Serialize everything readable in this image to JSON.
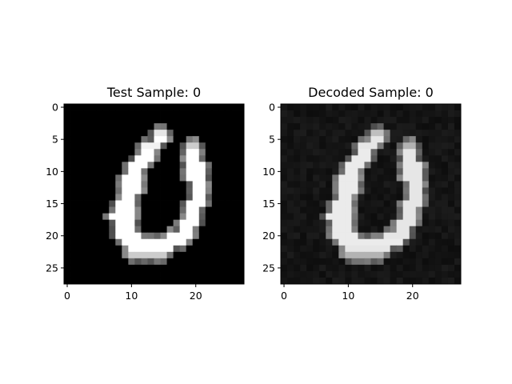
{
  "chart_data": [
    {
      "type": "heatmap",
      "title": "Test Sample: 0",
      "colormap": "gray",
      "rows": 28,
      "cols": 28,
      "xlim": [
        -0.5,
        27.5
      ],
      "ylim": [
        27.5,
        -0.5
      ],
      "xticks": [
        0,
        10,
        20
      ],
      "yticks": [
        0,
        5,
        10,
        15,
        20,
        25
      ],
      "background": 0.0,
      "stroke": [
        {
          "row": 4,
          "from": 14,
          "to": 15,
          "v": 0.9
        },
        {
          "row": 5,
          "from": 14,
          "to": 15,
          "v": 1.0
        },
        {
          "row": 6,
          "from": 12,
          "to": 14,
          "v": 0.95
        },
        {
          "row": 6,
          "from": 19,
          "to": 20,
          "v": 0.8
        },
        {
          "row": 7,
          "from": 12,
          "to": 13,
          "v": 1.0
        },
        {
          "row": 7,
          "from": 19,
          "to": 20,
          "v": 1.0
        },
        {
          "row": 8,
          "from": 11,
          "to": 13,
          "v": 1.0
        },
        {
          "row": 8,
          "from": 19,
          "to": 20,
          "v": 1.0
        },
        {
          "row": 9,
          "from": 10,
          "to": 12,
          "v": 1.0
        },
        {
          "row": 9,
          "from": 19,
          "to": 21,
          "v": 1.0
        },
        {
          "row": 10,
          "from": 10,
          "to": 11,
          "v": 1.0
        },
        {
          "row": 10,
          "from": 19,
          "to": 21,
          "v": 1.0
        },
        {
          "row": 11,
          "from": 9,
          "to": 11,
          "v": 1.0
        },
        {
          "row": 11,
          "from": 19,
          "to": 21,
          "v": 1.0
        },
        {
          "row": 12,
          "from": 9,
          "to": 11,
          "v": 1.0
        },
        {
          "row": 12,
          "from": 20,
          "to": 21,
          "v": 1.0
        },
        {
          "row": 13,
          "from": 9,
          "to": 11,
          "v": 1.0
        },
        {
          "row": 13,
          "from": 20,
          "to": 21,
          "v": 1.0
        },
        {
          "row": 14,
          "from": 9,
          "to": 10,
          "v": 1.0
        },
        {
          "row": 14,
          "from": 20,
          "to": 21,
          "v": 1.0
        },
        {
          "row": 15,
          "from": 8,
          "to": 10,
          "v": 1.0
        },
        {
          "row": 15,
          "from": 19,
          "to": 21,
          "v": 1.0
        },
        {
          "row": 16,
          "from": 8,
          "to": 10,
          "v": 1.0
        },
        {
          "row": 16,
          "from": 19,
          "to": 20,
          "v": 1.0
        },
        {
          "row": 17,
          "from": 7,
          "to": 10,
          "v": 1.0
        },
        {
          "row": 17,
          "from": 19,
          "to": 20,
          "v": 1.0
        },
        {
          "row": 18,
          "from": 8,
          "to": 10,
          "v": 1.0
        },
        {
          "row": 18,
          "from": 18,
          "to": 20,
          "v": 1.0
        },
        {
          "row": 19,
          "from": 8,
          "to": 10,
          "v": 1.0
        },
        {
          "row": 19,
          "from": 18,
          "to": 19,
          "v": 1.0
        },
        {
          "row": 20,
          "from": 8,
          "to": 11,
          "v": 1.0
        },
        {
          "row": 20,
          "from": 16,
          "to": 19,
          "v": 1.0
        },
        {
          "row": 21,
          "from": 9,
          "to": 18,
          "v": 1.0
        },
        {
          "row": 22,
          "from": 10,
          "to": 16,
          "v": 1.0
        },
        {
          "row": 23,
          "from": 10,
          "to": 15,
          "v": 0.8
        }
      ]
    },
    {
      "type": "heatmap",
      "title": "Decoded Sample: 0",
      "colormap": "gray",
      "rows": 28,
      "cols": 28,
      "xlim": [
        -0.5,
        27.5
      ],
      "ylim": [
        27.5,
        -0.5
      ],
      "xticks": [
        0,
        10,
        20
      ],
      "yticks": [
        0,
        5,
        10,
        15,
        20,
        25
      ],
      "background": 0.08,
      "stroke": [
        {
          "row": 4,
          "from": 14,
          "to": 15,
          "v": 0.75
        },
        {
          "row": 5,
          "from": 14,
          "to": 15,
          "v": 0.9
        },
        {
          "row": 6,
          "from": 12,
          "to": 14,
          "v": 0.9
        },
        {
          "row": 6,
          "from": 19,
          "to": 20,
          "v": 0.7
        },
        {
          "row": 7,
          "from": 12,
          "to": 13,
          "v": 0.92
        },
        {
          "row": 7,
          "from": 19,
          "to": 20,
          "v": 0.9
        },
        {
          "row": 8,
          "from": 11,
          "to": 13,
          "v": 0.92
        },
        {
          "row": 8,
          "from": 19,
          "to": 20,
          "v": 0.9
        },
        {
          "row": 9,
          "from": 10,
          "to": 12,
          "v": 0.92
        },
        {
          "row": 9,
          "from": 19,
          "to": 21,
          "v": 0.9
        },
        {
          "row": 10,
          "from": 10,
          "to": 11,
          "v": 0.92
        },
        {
          "row": 10,
          "from": 19,
          "to": 21,
          "v": 0.9
        },
        {
          "row": 11,
          "from": 9,
          "to": 11,
          "v": 0.92
        },
        {
          "row": 11,
          "from": 19,
          "to": 21,
          "v": 0.9
        },
        {
          "row": 12,
          "from": 9,
          "to": 11,
          "v": 0.92
        },
        {
          "row": 12,
          "from": 20,
          "to": 21,
          "v": 0.9
        },
        {
          "row": 13,
          "from": 9,
          "to": 11,
          "v": 0.92
        },
        {
          "row": 13,
          "from": 20,
          "to": 21,
          "v": 0.9
        },
        {
          "row": 14,
          "from": 9,
          "to": 10,
          "v": 0.92
        },
        {
          "row": 14,
          "from": 20,
          "to": 21,
          "v": 0.9
        },
        {
          "row": 15,
          "from": 8,
          "to": 10,
          "v": 0.92
        },
        {
          "row": 15,
          "from": 19,
          "to": 21,
          "v": 0.9
        },
        {
          "row": 16,
          "from": 8,
          "to": 10,
          "v": 0.92
        },
        {
          "row": 16,
          "from": 19,
          "to": 20,
          "v": 0.9
        },
        {
          "row": 17,
          "from": 7,
          "to": 10,
          "v": 0.92
        },
        {
          "row": 17,
          "from": 19,
          "to": 20,
          "v": 0.9
        },
        {
          "row": 18,
          "from": 8,
          "to": 10,
          "v": 0.92
        },
        {
          "row": 18,
          "from": 18,
          "to": 20,
          "v": 0.9
        },
        {
          "row": 19,
          "from": 8,
          "to": 10,
          "v": 0.92
        },
        {
          "row": 19,
          "from": 18,
          "to": 19,
          "v": 0.9
        },
        {
          "row": 20,
          "from": 8,
          "to": 11,
          "v": 0.92
        },
        {
          "row": 20,
          "from": 16,
          "to": 19,
          "v": 0.9
        },
        {
          "row": 21,
          "from": 9,
          "to": 18,
          "v": 0.92
        },
        {
          "row": 22,
          "from": 10,
          "to": 16,
          "v": 0.9
        },
        {
          "row": 23,
          "from": 10,
          "to": 15,
          "v": 0.7
        }
      ]
    }
  ]
}
